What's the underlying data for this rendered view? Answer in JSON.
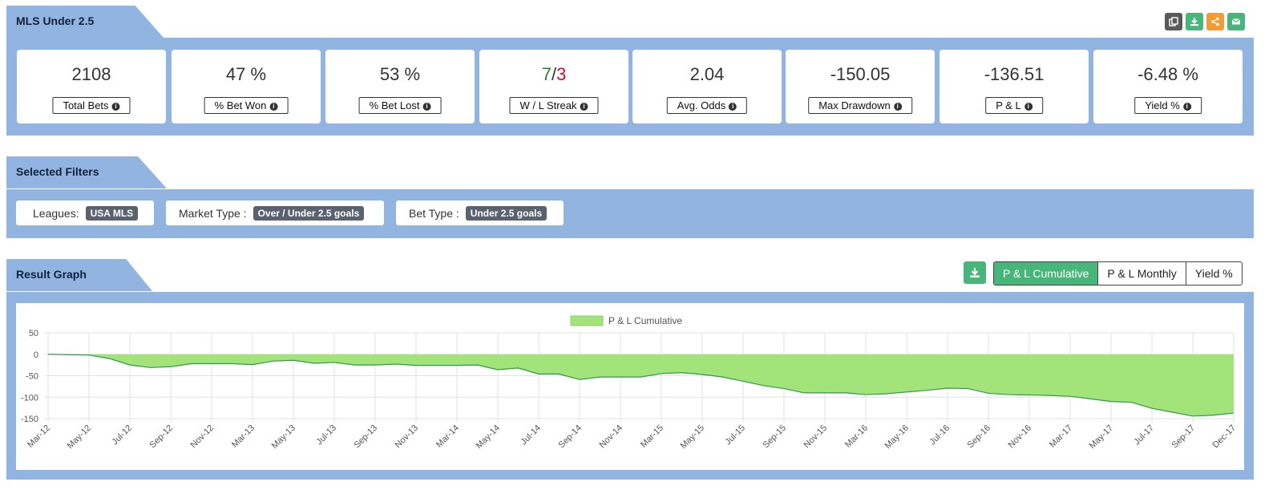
{
  "header": {
    "title": "MLS Under 2.5"
  },
  "toolbar": {
    "icons": [
      {
        "name": "copy-icon",
        "color": "#5a5a5a"
      },
      {
        "name": "download-icon",
        "color": "#48b67a"
      },
      {
        "name": "share-icon",
        "color": "#f39c33"
      },
      {
        "name": "email-icon",
        "color": "#48b67a"
      }
    ]
  },
  "stats": [
    {
      "value": "2108",
      "label": "Total Bets"
    },
    {
      "value": "47 %",
      "label": "% Bet Won"
    },
    {
      "value": "53 %",
      "label": "% Bet Lost"
    },
    {
      "value_win": "7",
      "value_sep": "/",
      "value_loss": "3",
      "label": "W / L Streak"
    },
    {
      "value": "2.04",
      "label": "Avg. Odds"
    },
    {
      "value": "-150.05",
      "label": "Max Drawdown"
    },
    {
      "value": "-136.51",
      "label": "P & L"
    },
    {
      "value": "-6.48 %",
      "label": "Yield %"
    }
  ],
  "filters": {
    "title": "Selected Filters",
    "items": [
      {
        "label": "Leagues:",
        "value": "USA MLS"
      },
      {
        "label": "Market Type :",
        "value": "Over / Under 2.5 goals"
      },
      {
        "label": "Bet Type :",
        "value": "Under 2.5 goals"
      }
    ]
  },
  "graph": {
    "title": "Result Graph",
    "tabs": [
      "P & L Cumulative",
      "P & L Monthly",
      "Yield %"
    ],
    "active_tab": "P & L Cumulative"
  },
  "colors": {
    "accent_green": "#48b67a",
    "band_blue": "#91b4e1",
    "negative": "#c8102e",
    "positive": "#2e7d32",
    "area_fill": "#a3e47a"
  },
  "chart_data": {
    "type": "area",
    "legend": [
      "P & L Cumulative"
    ],
    "legend_position": "top",
    "grid": true,
    "ylim": [
      -150,
      50
    ],
    "yticks": [
      50,
      0,
      -50,
      -100,
      -150
    ],
    "x_tick_labels": [
      "Mar-12",
      "May-12",
      "Jul-12",
      "Sep-12",
      "Nov-12",
      "Mar-13",
      "May-13",
      "Jul-13",
      "Sep-13",
      "Nov-13",
      "Mar-14",
      "May-14",
      "Jul-14",
      "Sep-14",
      "Nov-14",
      "Mar-15",
      "May-15",
      "Jul-15",
      "Sep-15",
      "Nov-15",
      "Mar-16",
      "May-16",
      "Jul-16",
      "Sep-16",
      "Nov-16",
      "Mar-17",
      "May-17",
      "Jul-17",
      "Sep-17",
      "Dec-17"
    ],
    "series": [
      {
        "name": "P & L Cumulative",
        "x": [
          0,
          1,
          1.5,
          2,
          2.5,
          3,
          3.5,
          4,
          4.5,
          5,
          5.5,
          6,
          6.5,
          7,
          7.5,
          8,
          8.5,
          9,
          9.5,
          10,
          10.5,
          11,
          11.5,
          12,
          12.5,
          13,
          13.5,
          14,
          14.5,
          15,
          15.5,
          16,
          16.5,
          17,
          17.5,
          18,
          18.5,
          19,
          19.5,
          20,
          20.5,
          21,
          21.5,
          22,
          22.5,
          23,
          23.5,
          24,
          24.5,
          25,
          25.5,
          26,
          26.5,
          27,
          27.5,
          28,
          28.5,
          29
        ],
        "values": [
          0,
          -2,
          -10,
          -25,
          -31,
          -29,
          -22,
          -22,
          -22,
          -24,
          -16,
          -14,
          -21,
          -19,
          -25,
          -25,
          -23,
          -26,
          -26,
          -26,
          -25,
          -36,
          -32,
          -46,
          -46,
          -59,
          -53,
          -53,
          -53,
          -45,
          -43,
          -47,
          -53,
          -63,
          -73,
          -80,
          -90,
          -90,
          -90,
          -94,
          -92,
          -88,
          -84,
          -79,
          -80,
          -91,
          -94,
          -95,
          -96,
          -98,
          -104,
          -110,
          -112,
          -126,
          -135,
          -144,
          -142,
          -137
        ]
      }
    ]
  }
}
